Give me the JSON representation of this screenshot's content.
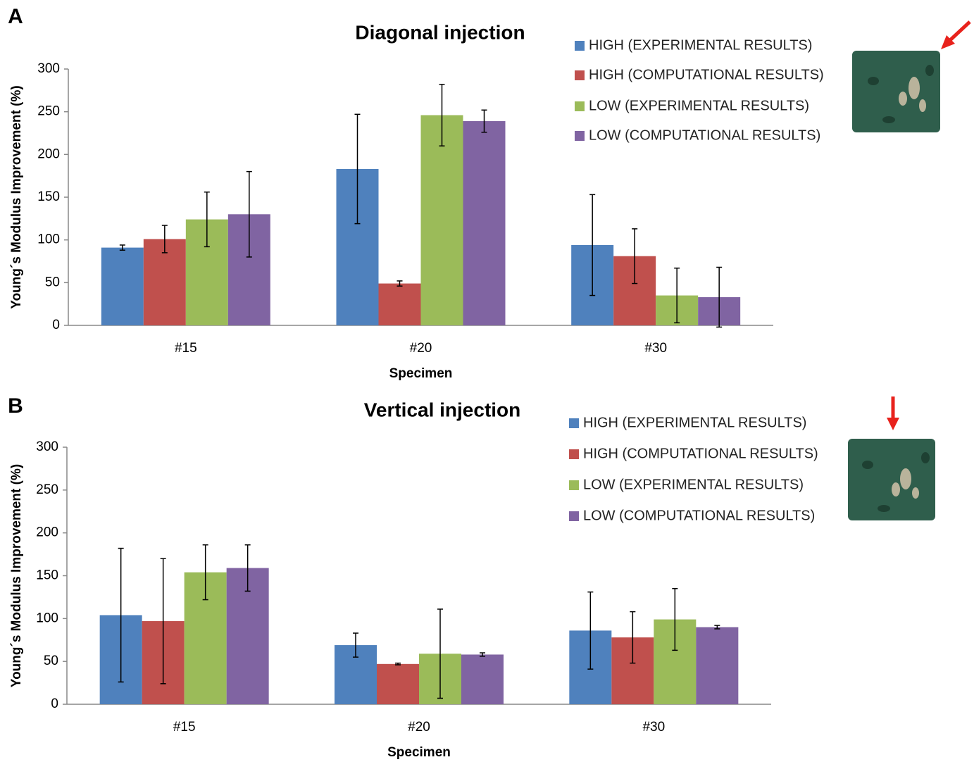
{
  "chart_data": [
    {
      "type": "bar",
      "panel_label": "A",
      "title": "Diagonal injection",
      "xlabel": "Specimen",
      "ylabel": "Young´s Modulus Improvement (%)",
      "categories": [
        "#15",
        "#20",
        "#30"
      ],
      "series": [
        {
          "name": "HIGH (EXPERIMENTAL RESULTS)",
          "color": "#4f81bd",
          "values": [
            91,
            183,
            94
          ],
          "errors": [
            3,
            64,
            59
          ]
        },
        {
          "name": "HIGH (COMPUTATIONAL RESULTS)",
          "color": "#c0504d",
          "values": [
            101,
            49,
            81
          ],
          "errors": [
            16,
            3,
            32
          ]
        },
        {
          "name": "LOW (EXPERIMENTAL RESULTS)",
          "color": "#9bbb59",
          "values": [
            124,
            246,
            35
          ],
          "errors": [
            32,
            36,
            32
          ]
        },
        {
          "name": "LOW (COMPUTATIONAL RESULTS)",
          "color": "#8064a2",
          "values": [
            130,
            239,
            33
          ],
          "errors": [
            50,
            13,
            35
          ]
        }
      ],
      "ylim": [
        0,
        300
      ],
      "yticks": [
        0,
        50,
        100,
        150,
        200,
        250,
        300
      ]
    },
    {
      "type": "bar",
      "panel_label": "B",
      "title": "Vertical injection",
      "xlabel": "Specimen",
      "ylabel": "Young´s Modulus Improvement (%)",
      "categories": [
        "#15",
        "#20",
        "#30"
      ],
      "series": [
        {
          "name": "HIGH (EXPERIMENTAL RESULTS)",
          "color": "#4f81bd",
          "values": [
            104,
            69,
            86
          ],
          "errors": [
            78,
            14,
            45
          ]
        },
        {
          "name": "HIGH (COMPUTATIONAL RESULTS)",
          "color": "#c0504d",
          "values": [
            97,
            47,
            78
          ],
          "errors": [
            73,
            1,
            30
          ]
        },
        {
          "name": "LOW (EXPERIMENTAL RESULTS)",
          "color": "#9bbb59",
          "values": [
            154,
            59,
            99
          ],
          "errors": [
            32,
            52,
            36
          ]
        },
        {
          "name": "LOW (COMPUTATIONAL RESULTS)",
          "color": "#8064a2",
          "values": [
            159,
            58,
            90
          ],
          "errors": [
            27,
            2,
            2
          ]
        }
      ],
      "ylim": [
        0,
        300
      ],
      "yticks": [
        0,
        50,
        100,
        150,
        200,
        250,
        300
      ]
    }
  ]
}
